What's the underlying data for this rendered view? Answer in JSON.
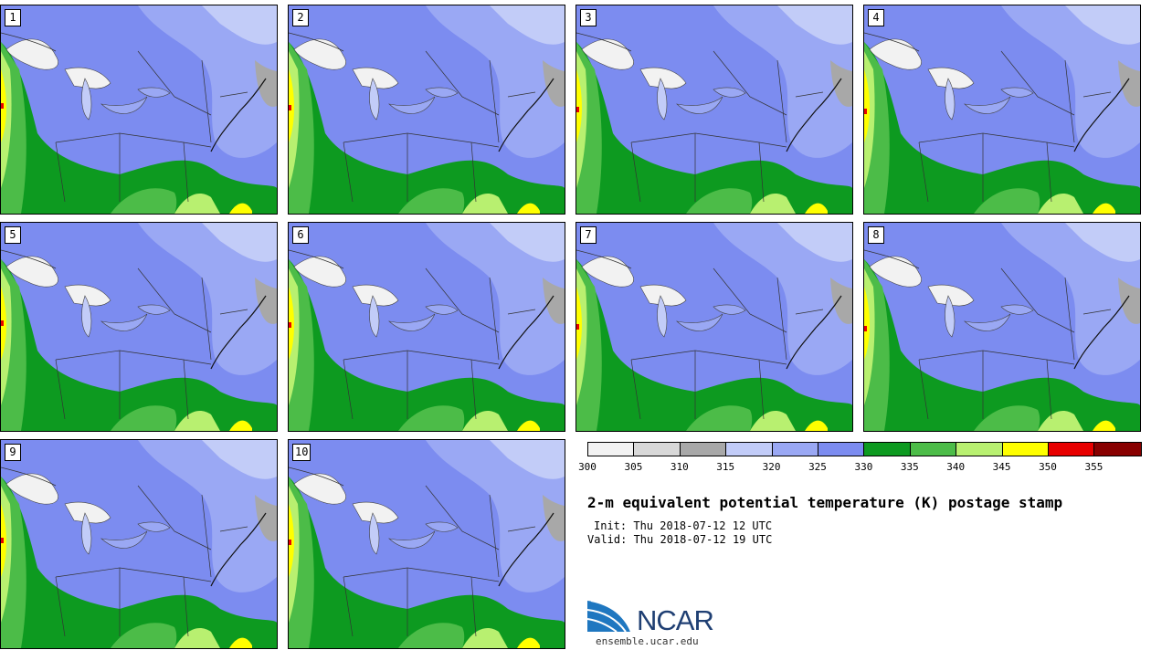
{
  "panels": [
    {
      "label": "1"
    },
    {
      "label": "2"
    },
    {
      "label": "3"
    },
    {
      "label": "4"
    },
    {
      "label": "5"
    },
    {
      "label": "6"
    },
    {
      "label": "7"
    },
    {
      "label": "8"
    },
    {
      "label": "9"
    },
    {
      "label": "10"
    }
  ],
  "colorbar": {
    "ticks": [
      "300",
      "305",
      "310",
      "315",
      "320",
      "325",
      "330",
      "335",
      "340",
      "345",
      "350",
      "355"
    ],
    "colors": [
      "#f2f2f2",
      "#d8d8d8",
      "#a8a8a8",
      "#c2ccf8",
      "#9aa8f4",
      "#7c8cf0",
      "#0d9a20",
      "#4cbc48",
      "#b8f070",
      "#ffff00",
      "#e80000",
      "#880000"
    ]
  },
  "title": "2-m equivalent potential temperature (K) postage stamp",
  "init": "Init: Thu 2018-07-12 12 UTC",
  "valid": "Valid: Thu 2018-07-12 19 UTC",
  "logo": {
    "name": "NCAR",
    "url": "ensemble.ucar.edu"
  }
}
